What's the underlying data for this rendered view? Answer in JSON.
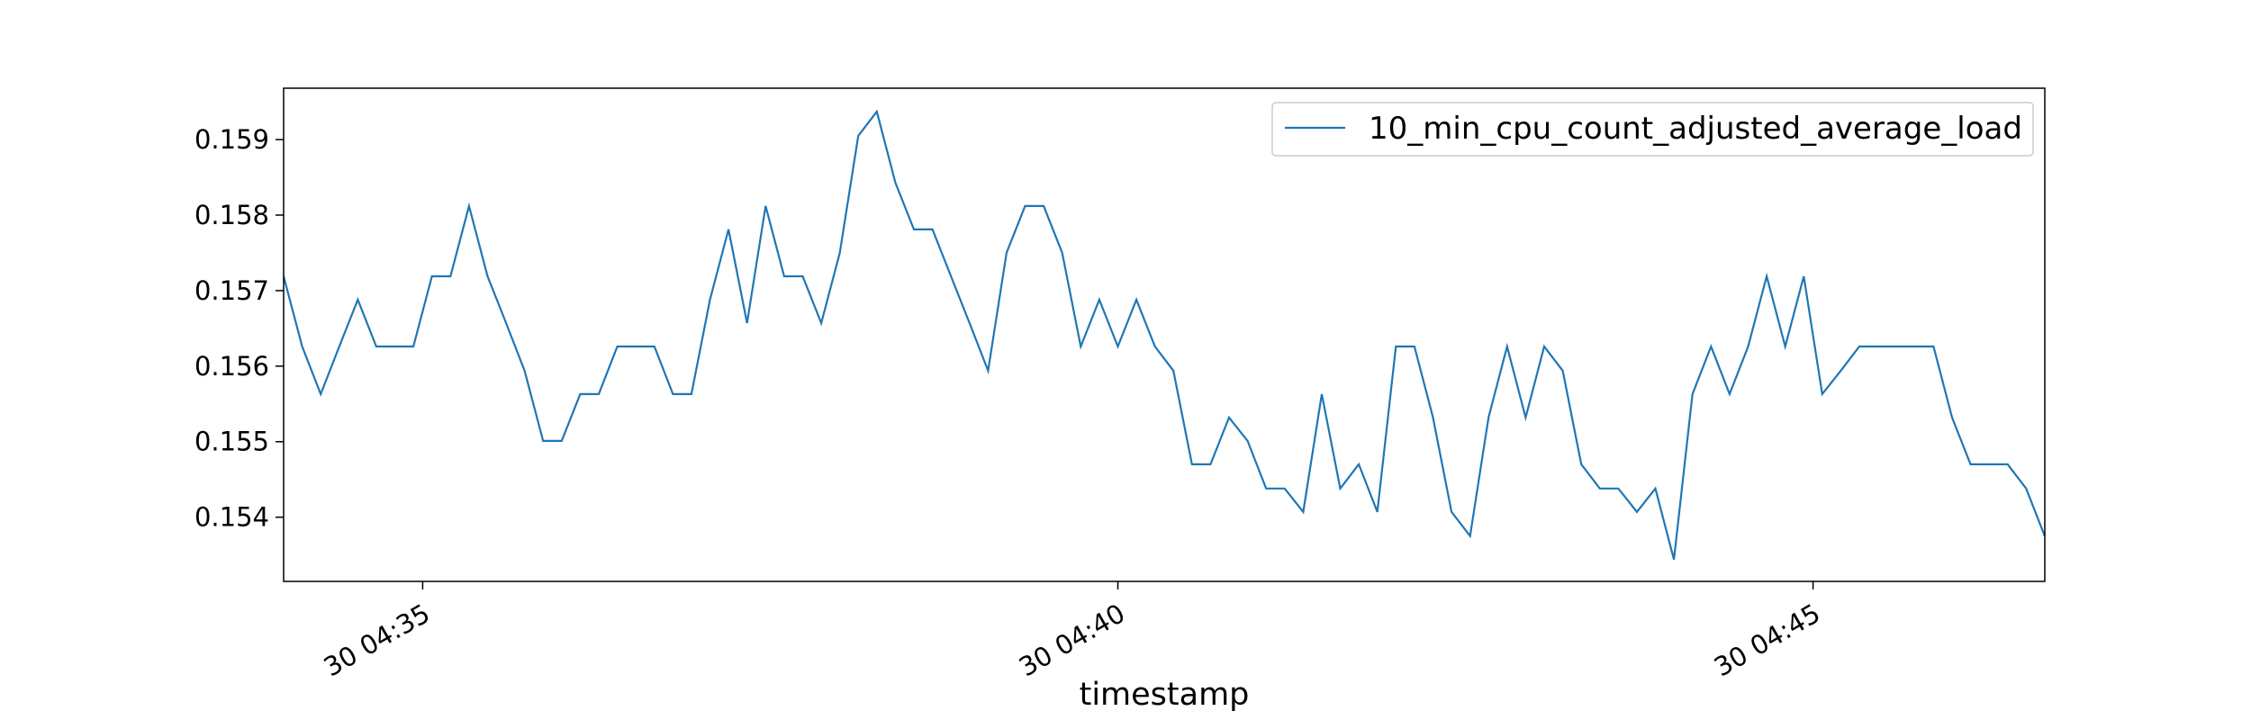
{
  "chart_data": {
    "type": "line",
    "title": "",
    "xlabel": "timestamp",
    "ylabel": "",
    "series_color": "#1f77b4",
    "legend": {
      "label": "10_min_cpu_count_adjusted_average_load",
      "placement": "top-right"
    },
    "x_unit": "minutes since 30 04:34",
    "xlim": [
      0,
      12.667
    ],
    "ylim": [
      0.15315,
      0.15968
    ],
    "x_ticks": [
      {
        "value": 1,
        "label": "30 04:35"
      },
      {
        "value": 6,
        "label": "30 04:40"
      },
      {
        "value": 11,
        "label": "30 04:45"
      }
    ],
    "y_ticks": [
      {
        "value": 0.154,
        "label": "0.154"
      },
      {
        "value": 0.155,
        "label": "0.155"
      },
      {
        "value": 0.156,
        "label": "0.156"
      },
      {
        "value": 0.157,
        "label": "0.157"
      },
      {
        "value": 0.158,
        "label": "0.158"
      },
      {
        "value": 0.159,
        "label": "0.159"
      }
    ],
    "x_step": 0.13333,
    "series": [
      {
        "name": "10_min_cpu_count_adjusted_average_load",
        "values": [
          0.15719,
          0.15626,
          0.15563,
          0.15626,
          0.15688,
          0.15626,
          0.15626,
          0.15626,
          0.15719,
          0.15719,
          0.15812,
          0.15719,
          0.15657,
          0.15594,
          0.15501,
          0.15501,
          0.15563,
          0.15563,
          0.15626,
          0.15626,
          0.15626,
          0.15563,
          0.15563,
          0.15688,
          0.15781,
          0.15657,
          0.15812,
          0.15719,
          0.15719,
          0.15657,
          0.1575,
          0.15905,
          0.15937,
          0.15843,
          0.15781,
          0.15781,
          0.15719,
          0.15657,
          0.15594,
          0.1575,
          0.15812,
          0.15812,
          0.1575,
          0.15626,
          0.15688,
          0.15626,
          0.15688,
          0.15626,
          0.15594,
          0.1547,
          0.1547,
          0.15532,
          0.15501,
          0.15438,
          0.15438,
          0.15407,
          0.15563,
          0.15438,
          0.1547,
          0.15407,
          0.15626,
          0.15626,
          0.15532,
          0.15407,
          0.15375,
          0.15532,
          0.15626,
          0.15532,
          0.15626,
          0.15594,
          0.1547,
          0.15438,
          0.15438,
          0.15407,
          0.15438,
          0.15344,
          0.15563,
          0.15626,
          0.15563,
          0.15626,
          0.15719,
          0.15626,
          0.15719,
          0.15563,
          0.15594,
          0.15626,
          0.15626,
          0.15626,
          0.15626,
          0.15626,
          0.15532,
          0.1547,
          0.1547,
          0.1547,
          0.15438,
          0.15375
        ]
      }
    ]
  }
}
